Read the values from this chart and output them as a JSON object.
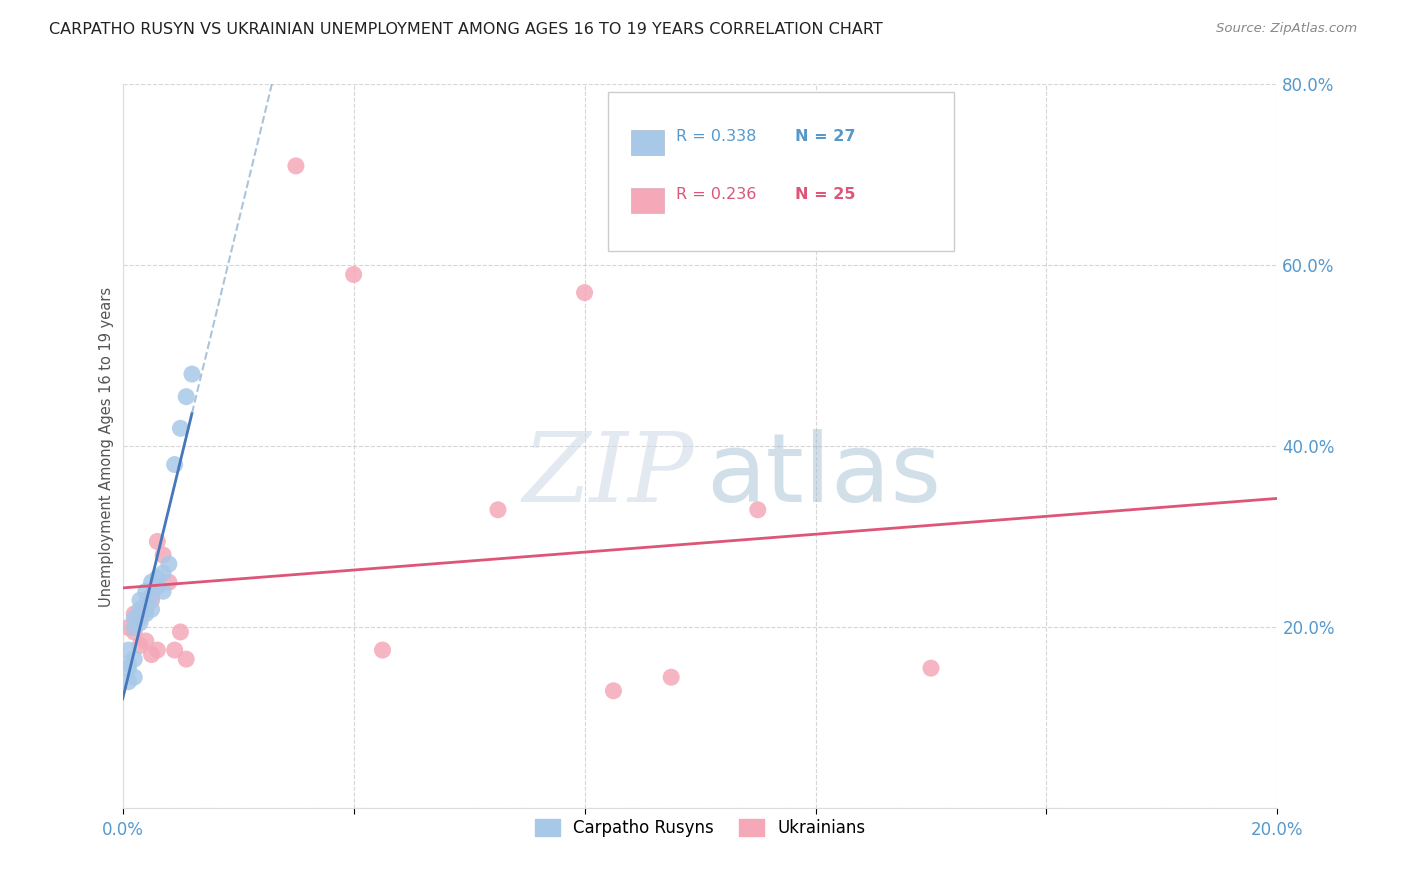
{
  "title": "CARPATHO RUSYN VS UKRAINIAN UNEMPLOYMENT AMONG AGES 16 TO 19 YEARS CORRELATION CHART",
  "source": "Source: ZipAtlas.com",
  "ylabel": "Unemployment Among Ages 16 to 19 years",
  "xlim": [
    0.0,
    0.2
  ],
  "ylim": [
    0.0,
    0.8
  ],
  "xticks": [
    0.0,
    0.04,
    0.08,
    0.12,
    0.16,
    0.2
  ],
  "yticks": [
    0.0,
    0.2,
    0.4,
    0.6,
    0.8
  ],
  "background_color": "#ffffff",
  "grid_color": "#cccccc",
  "blue_R": 0.338,
  "blue_N": 27,
  "pink_R": 0.236,
  "pink_N": 25,
  "blue_color": "#a8c8e8",
  "pink_color": "#f4a8b8",
  "blue_line_color": "#4477bb",
  "pink_line_color": "#dd5577",
  "blue_dash_color": "#88aacc",
  "tick_color": "#5599cc",
  "legend_blue_label": "Carpatho Rusyns",
  "legend_pink_label": "Ukrainians",
  "blue_scatter_x": [
    0.001,
    0.001,
    0.001,
    0.001,
    0.002,
    0.002,
    0.002,
    0.002,
    0.003,
    0.003,
    0.003,
    0.003,
    0.004,
    0.004,
    0.004,
    0.005,
    0.005,
    0.005,
    0.006,
    0.006,
    0.007,
    0.007,
    0.008,
    0.009,
    0.01,
    0.011,
    0.012
  ],
  "blue_scatter_y": [
    0.155,
    0.14,
    0.16,
    0.175,
    0.145,
    0.165,
    0.2,
    0.21,
    0.205,
    0.22,
    0.215,
    0.23,
    0.225,
    0.24,
    0.215,
    0.235,
    0.25,
    0.22,
    0.255,
    0.245,
    0.26,
    0.24,
    0.27,
    0.38,
    0.42,
    0.455,
    0.48
  ],
  "pink_scatter_x": [
    0.001,
    0.002,
    0.002,
    0.003,
    0.003,
    0.004,
    0.004,
    0.005,
    0.005,
    0.006,
    0.006,
    0.007,
    0.008,
    0.009,
    0.01,
    0.011,
    0.03,
    0.04,
    0.045,
    0.065,
    0.08,
    0.085,
    0.095,
    0.11,
    0.14
  ],
  "pink_scatter_y": [
    0.2,
    0.195,
    0.215,
    0.18,
    0.21,
    0.22,
    0.185,
    0.23,
    0.17,
    0.295,
    0.175,
    0.28,
    0.25,
    0.175,
    0.195,
    0.165,
    0.71,
    0.59,
    0.175,
    0.33,
    0.57,
    0.13,
    0.145,
    0.33,
    0.155
  ]
}
